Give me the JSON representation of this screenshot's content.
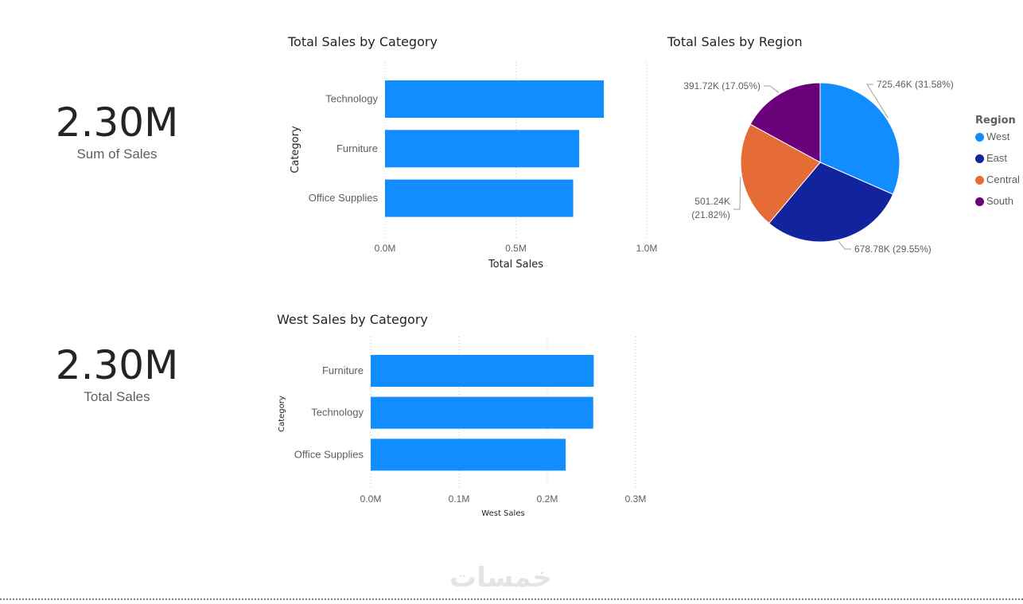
{
  "cards": [
    {
      "value": "2.30M",
      "label": "Sum of Sales"
    },
    {
      "value": "2.30M",
      "label": "Total Sales"
    }
  ],
  "watermark": "خمسات",
  "legend": {
    "title": "Region",
    "items": [
      {
        "label": "West",
        "color": "#118DFF"
      },
      {
        "label": "East",
        "color": "#12239E"
      },
      {
        "label": "Central",
        "color": "#E66C37"
      },
      {
        "label": "South",
        "color": "#6B007B"
      }
    ]
  },
  "chart_data": [
    {
      "type": "bar",
      "orientation": "horizontal",
      "title": "Total Sales by Category",
      "xlabel": "Total Sales",
      "ylabel": "Category",
      "categories": [
        "Technology",
        "Furniture",
        "Office Supplies"
      ],
      "values": [
        836154,
        741999,
        719047
      ],
      "xlim": [
        0,
        1000000
      ],
      "ticks": [
        0,
        500000,
        1000000
      ],
      "tick_labels": [
        "0.0M",
        "0.5M",
        "1.0M"
      ],
      "color": "#118DFF",
      "grid": true
    },
    {
      "type": "pie",
      "title": "Total Sales by Region",
      "legend_position": "right",
      "series": [
        {
          "name": "West",
          "value": 725460,
          "label": "725.46K (31.58%)",
          "color": "#118DFF"
        },
        {
          "name": "East",
          "value": 678780,
          "label": "678.78K (29.55%)",
          "color": "#12239E"
        },
        {
          "name": "Central",
          "value": 501240,
          "label": "501.24K (21.82%)",
          "color": "#E66C37"
        },
        {
          "name": "South",
          "value": 391720,
          "label": "391.72K (17.05%)",
          "color": "#6B007B"
        }
      ]
    },
    {
      "type": "bar",
      "orientation": "horizontal",
      "title": "West Sales by Category",
      "xlabel": "West Sales",
      "ylabel": "Category",
      "categories": [
        "Furniture",
        "Technology",
        "Office Supplies"
      ],
      "values": [
        252600,
        251990,
        220850
      ],
      "xlim": [
        0,
        300000
      ],
      "ticks": [
        0,
        100000,
        200000,
        300000
      ],
      "tick_labels": [
        "0.0M",
        "0.1M",
        "0.2M",
        "0.3M"
      ],
      "color": "#118DFF",
      "grid": true
    }
  ]
}
